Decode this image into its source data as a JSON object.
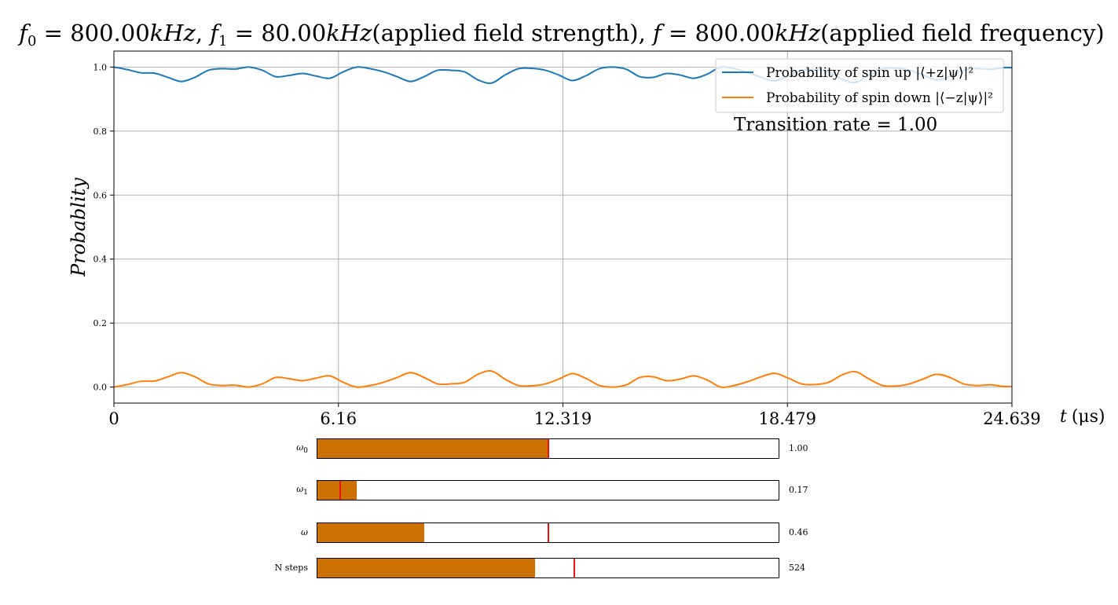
{
  "chart_data": {
    "type": "line",
    "title": "f₀ = 800.00kHz, f₁ = 80.00kHz(applied field strength), f = 800.00kHz(applied field frequency)",
    "title_parts": {
      "f0_sym": "f",
      "f0_sub": "0",
      "f0_rest": " = 800.00",
      "unit1": "kHz",
      "sep1": ", ",
      "f1_sym": "f",
      "f1_sub": "1",
      "f1_rest": " = 80.00",
      "unit2": "kHz",
      "paren1": "(applied field strength), ",
      "f_sym": "f",
      "f_rest": " = 800.00",
      "unit3": "kHz",
      "paren2": "(applied field frequency)"
    },
    "xlabel_var": "t",
    "xlabel_unit": "(μs)",
    "ylabel": "Probablity",
    "xlim": [
      0,
      24.639
    ],
    "ylim": [
      -0.05,
      1.05
    ],
    "x_ticks": [
      "0",
      "6.16",
      "12.319",
      "18.479",
      "24.639"
    ],
    "y_ticks": [
      "0.0",
      "0.2",
      "0.4",
      "0.6",
      "0.8",
      "1.0"
    ],
    "grid": true,
    "legend_position": "top-right",
    "annotation": "Transition rate = 1.00",
    "series": [
      {
        "name": "Probability of spin up |⟨+z|ψ⟩|²",
        "color": "#1f77b4",
        "points": [
          [
            0,
            1.0
          ],
          [
            0.37,
            0.992
          ],
          [
            0.74,
            0.982
          ],
          [
            1.11,
            0.981
          ],
          [
            1.48,
            0.968
          ],
          [
            1.85,
            0.955
          ],
          [
            2.22,
            0.968
          ],
          [
            2.59,
            0.99
          ],
          [
            2.96,
            0.995
          ],
          [
            3.33,
            0.994
          ],
          [
            3.7,
            1.0
          ],
          [
            4.07,
            0.99
          ],
          [
            4.44,
            0.97
          ],
          [
            4.81,
            0.974
          ],
          [
            5.18,
            0.98
          ],
          [
            5.55,
            0.972
          ],
          [
            5.92,
            0.965
          ],
          [
            6.29,
            0.985
          ],
          [
            6.66,
            1.0
          ],
          [
            7.03,
            0.995
          ],
          [
            7.4,
            0.985
          ],
          [
            7.77,
            0.97
          ],
          [
            8.14,
            0.955
          ],
          [
            8.51,
            0.97
          ],
          [
            8.88,
            0.99
          ],
          [
            9.25,
            0.99
          ],
          [
            9.62,
            0.985
          ],
          [
            9.99,
            0.96
          ],
          [
            10.36,
            0.95
          ],
          [
            10.73,
            0.975
          ],
          [
            11.1,
            0.995
          ],
          [
            11.47,
            0.996
          ],
          [
            11.84,
            0.99
          ],
          [
            12.21,
            0.975
          ],
          [
            12.58,
            0.958
          ],
          [
            12.95,
            0.973
          ],
          [
            13.32,
            0.995
          ],
          [
            13.69,
            1.0
          ],
          [
            14.06,
            0.993
          ],
          [
            14.43,
            0.97
          ],
          [
            14.8,
            0.968
          ],
          [
            15.17,
            0.98
          ],
          [
            15.54,
            0.975
          ],
          [
            15.91,
            0.965
          ],
          [
            16.28,
            0.978
          ],
          [
            16.65,
            1.0
          ],
          [
            17.02,
            0.995
          ],
          [
            17.39,
            0.983
          ],
          [
            17.76,
            0.968
          ],
          [
            18.13,
            0.957
          ],
          [
            18.5,
            0.972
          ],
          [
            18.87,
            0.99
          ],
          [
            19.24,
            0.992
          ],
          [
            19.61,
            0.985
          ],
          [
            19.98,
            0.962
          ],
          [
            20.35,
            0.952
          ],
          [
            20.72,
            0.975
          ],
          [
            21.09,
            0.995
          ],
          [
            21.46,
            0.997
          ],
          [
            21.83,
            0.99
          ],
          [
            22.2,
            0.975
          ],
          [
            22.57,
            0.96
          ],
          [
            22.94,
            0.97
          ],
          [
            23.31,
            0.99
          ],
          [
            23.68,
            0.995
          ],
          [
            24.05,
            0.993
          ],
          [
            24.42,
            0.998
          ],
          [
            24.639,
            0.998
          ]
        ]
      },
      {
        "name": "Probability of spin down |⟨−z|ψ⟩|²",
        "color": "#ff7f0e",
        "points": [
          [
            0,
            0.0
          ],
          [
            0.37,
            0.008
          ],
          [
            0.74,
            0.018
          ],
          [
            1.11,
            0.019
          ],
          [
            1.48,
            0.032
          ],
          [
            1.85,
            0.045
          ],
          [
            2.22,
            0.032
          ],
          [
            2.59,
            0.01
          ],
          [
            2.96,
            0.005
          ],
          [
            3.33,
            0.006
          ],
          [
            3.7,
            0.0
          ],
          [
            4.07,
            0.01
          ],
          [
            4.44,
            0.03
          ],
          [
            4.81,
            0.026
          ],
          [
            5.18,
            0.02
          ],
          [
            5.55,
            0.028
          ],
          [
            5.92,
            0.035
          ],
          [
            6.29,
            0.015
          ],
          [
            6.66,
            0.0
          ],
          [
            7.03,
            0.005
          ],
          [
            7.4,
            0.015
          ],
          [
            7.77,
            0.03
          ],
          [
            8.14,
            0.045
          ],
          [
            8.51,
            0.03
          ],
          [
            8.88,
            0.01
          ],
          [
            9.25,
            0.01
          ],
          [
            9.62,
            0.015
          ],
          [
            9.99,
            0.04
          ],
          [
            10.36,
            0.05
          ],
          [
            10.73,
            0.025
          ],
          [
            11.1,
            0.005
          ],
          [
            11.47,
            0.004
          ],
          [
            11.84,
            0.01
          ],
          [
            12.21,
            0.025
          ],
          [
            12.58,
            0.042
          ],
          [
            12.95,
            0.027
          ],
          [
            13.32,
            0.005
          ],
          [
            13.69,
            0.0
          ],
          [
            14.06,
            0.007
          ],
          [
            14.43,
            0.03
          ],
          [
            14.8,
            0.032
          ],
          [
            15.17,
            0.02
          ],
          [
            15.54,
            0.025
          ],
          [
            15.91,
            0.035
          ],
          [
            16.28,
            0.022
          ],
          [
            16.65,
            0.0
          ],
          [
            17.02,
            0.005
          ],
          [
            17.39,
            0.017
          ],
          [
            17.76,
            0.032
          ],
          [
            18.13,
            0.043
          ],
          [
            18.5,
            0.028
          ],
          [
            18.87,
            0.01
          ],
          [
            19.24,
            0.008
          ],
          [
            19.61,
            0.015
          ],
          [
            19.98,
            0.038
          ],
          [
            20.35,
            0.048
          ],
          [
            20.72,
            0.025
          ],
          [
            21.09,
            0.005
          ],
          [
            21.46,
            0.003
          ],
          [
            21.83,
            0.01
          ],
          [
            22.2,
            0.025
          ],
          [
            22.57,
            0.04
          ],
          [
            22.94,
            0.03
          ],
          [
            23.31,
            0.01
          ],
          [
            23.68,
            0.005
          ],
          [
            24.05,
            0.007
          ],
          [
            24.42,
            0.002
          ],
          [
            24.639,
            0.002
          ]
        ]
      }
    ]
  },
  "sliders": [
    {
      "label_sym": "ω",
      "label_sub": "0",
      "value_text": "1.00",
      "fill_fraction": 0.5,
      "init_fraction": 0.5
    },
    {
      "label_sym": "ω",
      "label_sub": "1",
      "value_text": "0.17",
      "fill_fraction": 0.085,
      "init_fraction": 0.05
    },
    {
      "label_sym": "ω",
      "label_sub": "",
      "value_text": "0.46",
      "fill_fraction": 0.232,
      "init_fraction": 0.5
    },
    {
      "label_sym": "N steps",
      "label_sub": "",
      "value_text": "524",
      "fill_fraction": 0.472,
      "init_fraction": 0.557
    }
  ],
  "colors": {
    "slider_fill": "#cc7000",
    "slider_init_line": "#ee1111",
    "grid": "#b0b0b0"
  }
}
